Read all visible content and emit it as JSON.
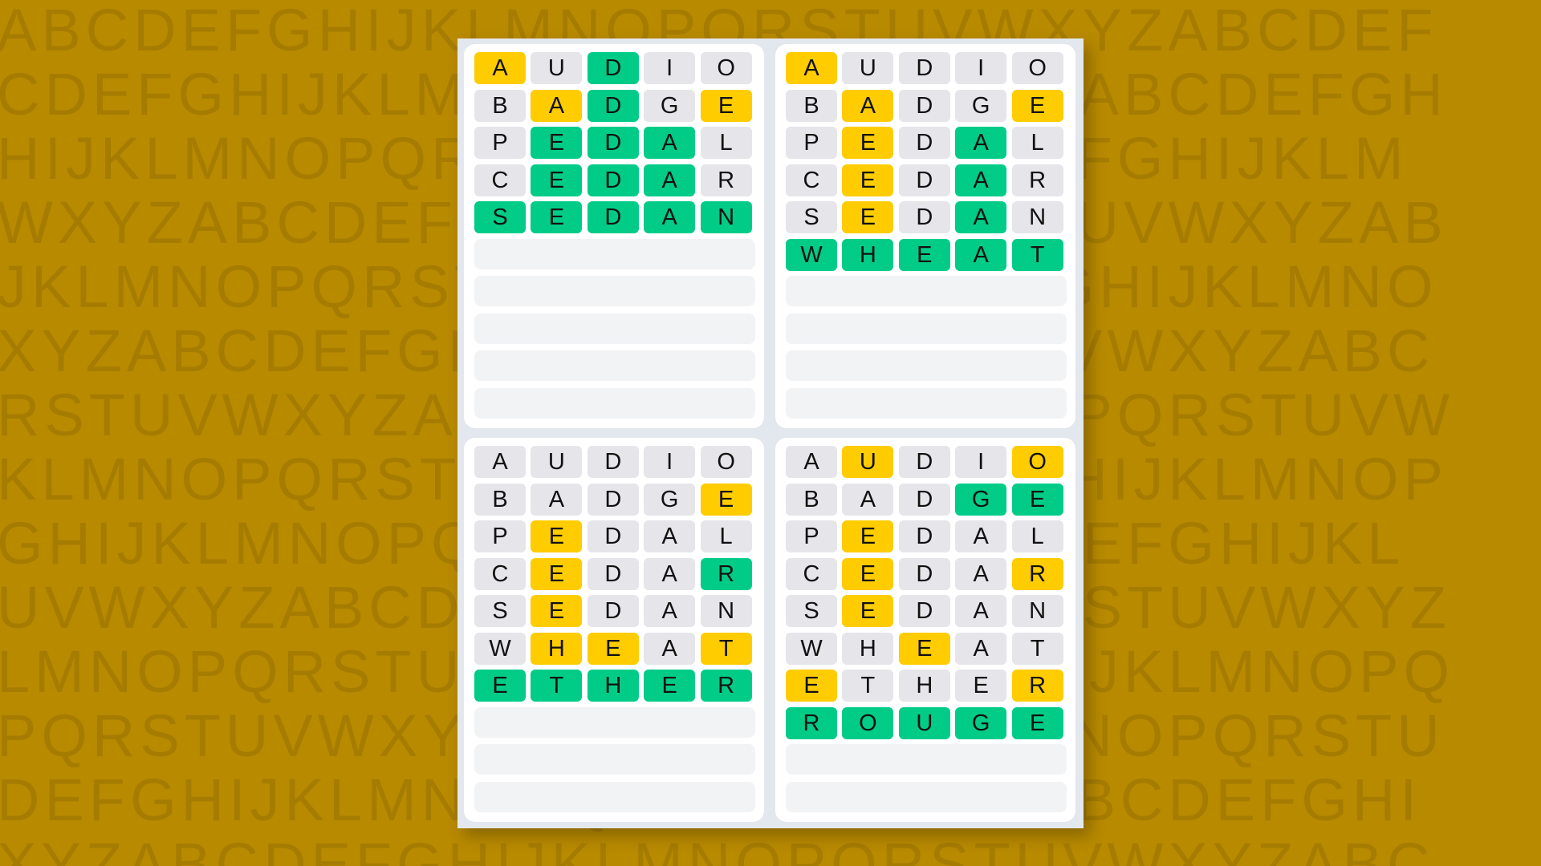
{
  "background": {
    "color": "#B88A00",
    "letter_rows": [
      "ABCDEFGHIJKLMNOPQRSTUVWXYZABCDEF",
      "CDEFGHIJKLMNOPQRSTUVWXYZABCDEFGH",
      "HIJKLMNOPQRSTUVWXYZABCDEFGHIJKLM",
      "WXYZABCDEFGHIJKLMNOPQRSTUVWXYZAB",
      "JKLMNOPQRSTUVWXYZABCDEFGHIJKLMNO",
      "XYZABCDEFGHIJKLMNOPQRSTUVWXYZABC",
      "RSTUVWXYZABCDEFGHIJKLMNOPQRSTUVW",
      "KLMNOPQRSTUVWXYZABCDEFGHIJKLMNOP",
      "GHIJKLMNOPQRSTUVWXYZABCDEFGHIJKL",
      "UVWXYZABCDEFGHIJKLMNOPQRSTUVWXYZ",
      "LMNOPQRSTUVWXYZABCDEFGHIJKLMNOPQ",
      "PQRSTUVWXYZABCDEFGHIJKLMNOPQRSTU",
      "DEFGHIJKLMNOPQRSTUVWXYZABCDEFGHI",
      "XYZABCDEFGHIJKLMNOPQRSTUVWXYZABC"
    ]
  },
  "colors": {
    "correct": "#00CC88",
    "present": "#FFCC00",
    "absent": "#E5E5EA",
    "empty": "#F2F3F5"
  },
  "legend": {
    "g": "correct",
    "y": "present",
    "x": "absent"
  },
  "total_rows": 10,
  "boards": [
    {
      "guesses": [
        {
          "word": "AUDIO",
          "states": "yxgxx"
        },
        {
          "word": "BADGE",
          "states": "xygxy"
        },
        {
          "word": "PEDAL",
          "states": "xgggx"
        },
        {
          "word": "CEDAR",
          "states": "xgggx"
        },
        {
          "word": "SEDAN",
          "states": "ggggg"
        }
      ]
    },
    {
      "guesses": [
        {
          "word": "AUDIO",
          "states": "yxxxx"
        },
        {
          "word": "BADGE",
          "states": "xyxxy"
        },
        {
          "word": "PEDAL",
          "states": "xyxgx"
        },
        {
          "word": "CEDAR",
          "states": "xyxgx"
        },
        {
          "word": "SEDAN",
          "states": "xyxgx"
        },
        {
          "word": "WHEAT",
          "states": "ggggg"
        }
      ]
    },
    {
      "guesses": [
        {
          "word": "AUDIO",
          "states": "xxxxx"
        },
        {
          "word": "BADGE",
          "states": "xxxxy"
        },
        {
          "word": "PEDAL",
          "states": "xyxxx"
        },
        {
          "word": "CEDAR",
          "states": "xyxxg"
        },
        {
          "word": "SEDAN",
          "states": "xyxxx"
        },
        {
          "word": "WHEAT",
          "states": "xyyxy"
        },
        {
          "word": "ETHER",
          "states": "ggggg"
        }
      ]
    },
    {
      "guesses": [
        {
          "word": "AUDIO",
          "states": "xyxxy"
        },
        {
          "word": "BADGE",
          "states": "xxxgg"
        },
        {
          "word": "PEDAL",
          "states": "xyxxx"
        },
        {
          "word": "CEDAR",
          "states": "xyxxy"
        },
        {
          "word": "SEDAN",
          "states": "xyxxx"
        },
        {
          "word": "WHEAT",
          "states": "xxyxx"
        },
        {
          "word": "ETHER",
          "states": "yxxxy"
        },
        {
          "word": "ROUGE",
          "states": "ggggg"
        }
      ]
    }
  ]
}
